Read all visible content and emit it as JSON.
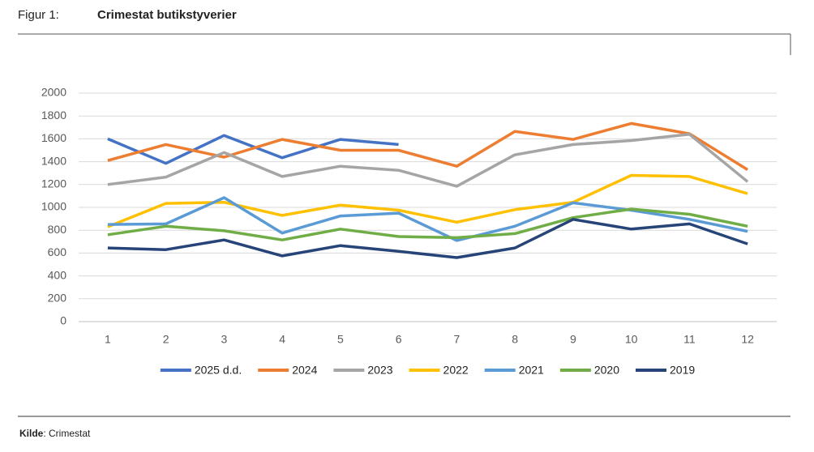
{
  "figure_label": "Figur 1:",
  "source": {
    "label": "Kilde",
    "text": ": Crimestat"
  },
  "chart_data": {
    "type": "line",
    "title": "Crimestat butikstyverier",
    "categories": [
      "1",
      "2",
      "3",
      "4",
      "5",
      "6",
      "7",
      "8",
      "9",
      "10",
      "11",
      "12"
    ],
    "ylim": [
      0,
      2000
    ],
    "yticks": [
      0,
      200,
      400,
      600,
      800,
      1000,
      1200,
      1400,
      1600,
      1800,
      2000
    ],
    "grid": true,
    "legend": "bottom",
    "series": [
      {
        "name": "2025 d.d.",
        "color": "#4472c4",
        "values": [
          1600,
          1385,
          1630,
          1435,
          1595,
          1550,
          null,
          null,
          null,
          null,
          null,
          null
        ]
      },
      {
        "name": "2024",
        "color": "#ed7d31",
        "values": [
          1410,
          1550,
          1440,
          1595,
          1500,
          1500,
          1360,
          1665,
          1595,
          1735,
          1645,
          1330
        ]
      },
      {
        "name": "2023",
        "color": "#a5a5a5",
        "values": [
          1200,
          1265,
          1480,
          1270,
          1360,
          1325,
          1185,
          1460,
          1550,
          1585,
          1640,
          1225
        ]
      },
      {
        "name": "2022",
        "color": "#ffc000",
        "values": [
          830,
          1035,
          1045,
          930,
          1020,
          975,
          870,
          980,
          1045,
          1280,
          1270,
          1120
        ]
      },
      {
        "name": "2021",
        "color": "#5b9bd5",
        "values": [
          850,
          855,
          1085,
          775,
          925,
          950,
          710,
          835,
          1040,
          975,
          895,
          790
        ]
      },
      {
        "name": "2020",
        "color": "#70ad47",
        "values": [
          760,
          835,
          795,
          715,
          810,
          745,
          735,
          770,
          910,
          985,
          940,
          835
        ]
      },
      {
        "name": "2019",
        "color": "#264478",
        "values": [
          645,
          630,
          715,
          575,
          665,
          615,
          560,
          645,
          895,
          810,
          855,
          680
        ]
      }
    ]
  }
}
